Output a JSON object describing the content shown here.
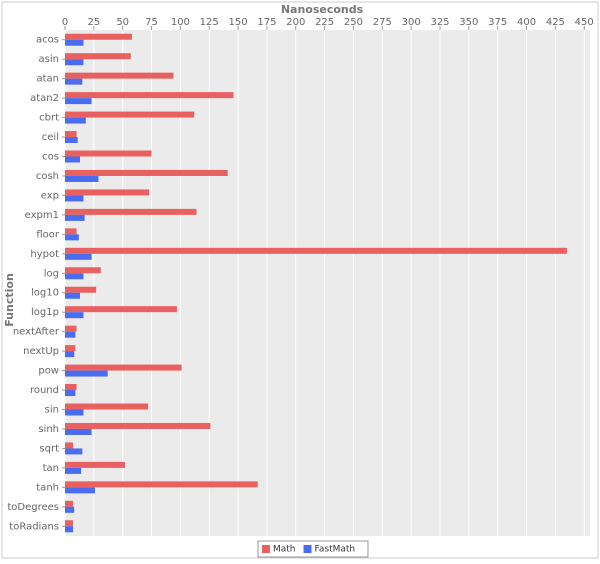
{
  "chart_data": {
    "type": "hbar",
    "x_label": "Nanoseconds",
    "y_label": "Function",
    "categories": [
      "acos",
      "asin",
      "atan",
      "atan2",
      "cbrt",
      "ceil",
      "cos",
      "cosh",
      "exp",
      "expm1",
      "floor",
      "hypot",
      "log",
      "log10",
      "log1p",
      "nextAfter",
      "nextUp",
      "pow",
      "round",
      "sin",
      "sinh",
      "sqrt",
      "tan",
      "tanh",
      "toDegrees",
      "toRadians"
    ],
    "series": [
      {
        "name": "Math",
        "color": "#e8605f",
        "values": [
          58,
          57,
          94,
          146,
          112,
          10,
          75,
          141,
          73,
          114,
          10,
          435,
          31,
          27,
          97,
          10,
          9,
          101,
          10,
          72,
          126,
          7,
          52,
          167,
          7,
          7
        ]
      },
      {
        "name": "FastMath",
        "color": "#4a6cf0",
        "values": [
          16,
          16,
          15,
          23,
          18,
          11,
          13,
          29,
          16,
          17,
          12,
          23,
          16,
          13,
          16,
          9,
          8,
          37,
          9,
          16,
          23,
          15,
          14,
          26,
          8,
          7
        ]
      }
    ],
    "xlim": [
      0,
      455
    ],
    "xticks": [
      0,
      25,
      50,
      75,
      100,
      125,
      150,
      175,
      200,
      225,
      250,
      275,
      300,
      325,
      350,
      375,
      400,
      425,
      450
    ],
    "grid": true,
    "legend": "bottom"
  }
}
